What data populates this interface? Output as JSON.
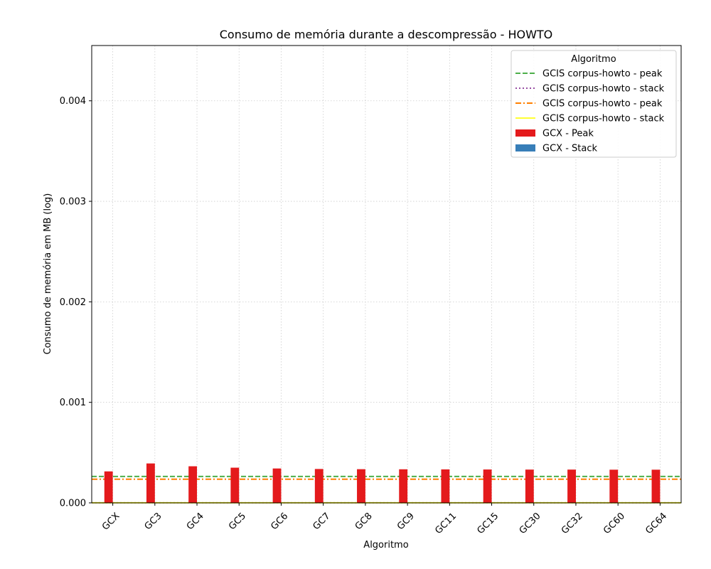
{
  "chart_data": {
    "type": "bar",
    "title": "Consumo de memória durante a descompressão -  HOWTO",
    "xlabel": "Algoritmo",
    "ylabel": "Consumo de memória em MB (log)",
    "ylim": [
      0,
      0.00455
    ],
    "grid": true,
    "yticks": [
      0.0,
      0.001,
      0.002,
      0.003,
      0.004
    ],
    "ytick_labels": [
      "0.000",
      "0.001",
      "0.002",
      "0.003",
      "0.004"
    ],
    "categories": [
      "GCX",
      "GC3",
      "GC4",
      "GC5",
      "GC6",
      "GC7",
      "GC8",
      "GC9",
      "GC11",
      "GC15",
      "GC30",
      "GC32",
      "GC60",
      "GC64"
    ],
    "series": [
      {
        "name": "GCX - Peak",
        "color": "#e41a1c",
        "values": [
          0.000313,
          0.000392,
          0.000364,
          0.00035,
          0.000342,
          0.000337,
          0.000335,
          0.000334,
          0.000333,
          0.000332,
          0.000331,
          0.000331,
          0.00033,
          0.00033
        ]
      },
      {
        "name": "GCX - Stack",
        "color": "#377eb8",
        "values": [
          5e-07,
          5e-07,
          5e-07,
          5e-07,
          5e-07,
          5e-07,
          5e-07,
          5e-07,
          5e-07,
          5e-07,
          5e-07,
          5e-07,
          5e-07,
          5e-07
        ]
      }
    ],
    "reference_lines": [
      {
        "name": "GCIS corpus-howto - peak",
        "value": 0.000263,
        "color": "#4daf4a",
        "style": "dashed"
      },
      {
        "name": "GCIS corpus-howto - stack",
        "value": 8e-07,
        "color": "#984ea3",
        "style": "dotted"
      },
      {
        "name": "GCIS corpus-howto - peak",
        "value": 0.000235,
        "color": "#ff7f00",
        "style": "dashdot"
      },
      {
        "name": "GCIS corpus-howto - stack",
        "value": 8e-07,
        "color": "#ffff33",
        "style": "solid"
      }
    ],
    "legend": {
      "title": "Algoritmo",
      "position": "top-right"
    }
  }
}
